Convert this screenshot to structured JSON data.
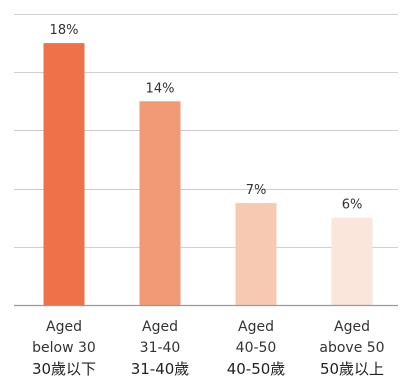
{
  "chart_data": {
    "type": "bar",
    "title": "",
    "xlabel": "",
    "ylabel": "",
    "ylim": [
      0,
      20
    ],
    "grid": true,
    "legend": "none",
    "categories": [
      {
        "en_line1": "Aged",
        "en_line2": "below 30",
        "zh": "30歲以下"
      },
      {
        "en_line1": "Aged",
        "en_line2": "31-40",
        "zh": "31-40歲"
      },
      {
        "en_line1": "Aged",
        "en_line2": "40-50",
        "zh": "40-50歲"
      },
      {
        "en_line1": "Aged",
        "en_line2": "above 50",
        "zh": "50歲以上"
      }
    ],
    "values": [
      18,
      14,
      7,
      6
    ],
    "value_labels": [
      "18%",
      "14%",
      "7%",
      "6%"
    ],
    "colors": [
      "#ee7149",
      "#f29a75",
      "#f7c9b3",
      "#fae6da"
    ]
  }
}
